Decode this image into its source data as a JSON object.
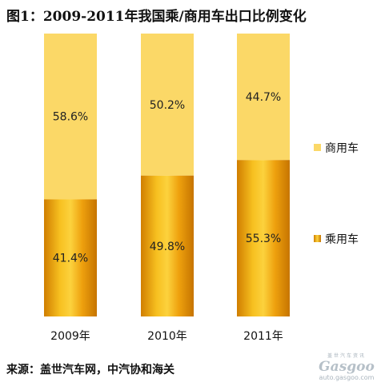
{
  "title": "图1：2009-2011年我国乘/商用车出口比例变化",
  "source": "来源：盖世汽车网，中汽协和海关",
  "watermark": {
    "cn": "盖世汽车资讯",
    "logo": "Gasgoo",
    "url": "auto.gasgoo.com"
  },
  "chart_data": {
    "type": "bar",
    "stacked": true,
    "percent_stacked": true,
    "categories": [
      "2009年",
      "2010年",
      "2011年"
    ],
    "series": [
      {
        "name": "乘用车",
        "values": [
          41.4,
          49.8,
          55.3
        ],
        "labels": [
          "41.4%",
          "49.8%",
          "55.3%"
        ],
        "color": "#f0a40c"
      },
      {
        "name": "商用车",
        "values": [
          58.6,
          50.2,
          44.7
        ],
        "labels": [
          "58.6%",
          "50.2%",
          "44.7%"
        ],
        "color": "#fbd867"
      }
    ],
    "ylim": [
      0,
      100
    ],
    "grid": false,
    "legend": "right",
    "legend_order": [
      "商用车",
      "乘用车"
    ]
  }
}
